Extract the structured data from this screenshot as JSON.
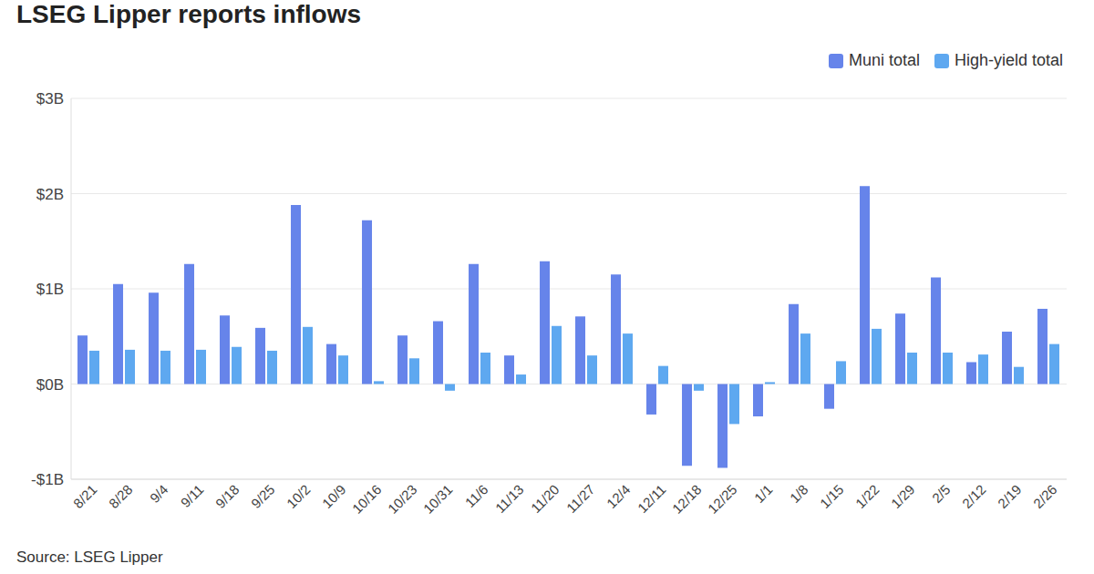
{
  "chart_data": {
    "type": "bar",
    "title": "LSEG Lipper reports inflows",
    "source": "Source: LSEG Lipper",
    "categories": [
      "8/21",
      "8/28",
      "9/4",
      "9/11",
      "9/18",
      "9/25",
      "10/2",
      "10/9",
      "10/16",
      "10/23",
      "10/31",
      "11/6",
      "11/13",
      "11/20",
      "11/27",
      "12/4",
      "12/11",
      "12/18",
      "12/25",
      "1/1",
      "1/8",
      "1/15",
      "1/22",
      "1/29",
      "2/5",
      "2/12",
      "2/19",
      "2/26"
    ],
    "series": [
      {
        "name": "Muni total",
        "color": "#6684ea",
        "values": [
          0.51,
          1.05,
          0.96,
          1.26,
          0.72,
          0.59,
          1.88,
          0.42,
          1.72,
          0.51,
          0.66,
          1.26,
          0.3,
          1.29,
          0.71,
          1.15,
          -0.32,
          -0.86,
          -0.88,
          -0.34,
          0.84,
          -0.26,
          2.08,
          0.74,
          1.12,
          0.23,
          0.55,
          0.79
        ]
      },
      {
        "name": "High-yield total",
        "color": "#5ea8f0",
        "values": [
          0.35,
          0.36,
          0.35,
          0.36,
          0.39,
          0.35,
          0.6,
          0.3,
          0.03,
          0.27,
          -0.07,
          0.33,
          0.1,
          0.61,
          0.3,
          0.53,
          0.19,
          -0.07,
          -0.42,
          0.02,
          0.53,
          0.24,
          0.58,
          0.33,
          0.33,
          0.31,
          0.18,
          0.42
        ]
      }
    ],
    "ylim": [
      -1,
      3
    ],
    "yticks": [
      {
        "value": -1,
        "label": "-$1B"
      },
      {
        "value": 0,
        "label": "$0B"
      },
      {
        "value": 1,
        "label": "$1B"
      },
      {
        "value": 2,
        "label": "$2B"
      },
      {
        "value": 3,
        "label": "$3B"
      }
    ],
    "grid": true,
    "legend": "upper right"
  }
}
